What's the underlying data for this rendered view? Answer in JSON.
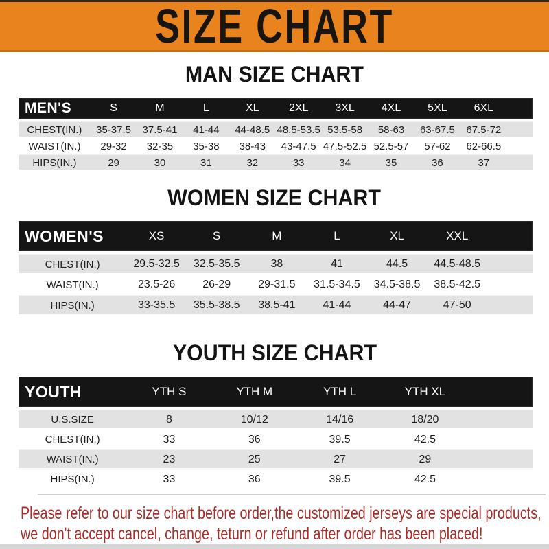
{
  "banner": {
    "title": "SIZE CHART",
    "bg_color": "#E8831D",
    "text_color": "#181410"
  },
  "sections": [
    {
      "id": "men",
      "heading": "MAN SIZE CHART",
      "table": {
        "header_label": "MEN'S",
        "columns": [
          "S",
          "M",
          "L",
          "XL",
          "2XL",
          "3XL",
          "4XL",
          "5XL",
          "6XL"
        ],
        "rows": [
          {
            "label": "CHEST(IN.)",
            "values": [
              "35-37.5",
              "37.5-41",
              "41-44",
              "44-48.5",
              "48.5-53.5",
              "53.5-58",
              "58-63",
              "63-67.5",
              "67.5-72"
            ]
          },
          {
            "label": "WAIST(IN.)",
            "values": [
              "29-32",
              "32-35",
              "35-38",
              "38-43",
              "43-47.5",
              "47.5-52.5",
              "52.5-57",
              "57-62",
              "62-66.5"
            ]
          },
          {
            "label": "HIPS(IN.)",
            "values": [
              "29",
              "30",
              "31",
              "32",
              "33",
              "34",
              "35",
              "36",
              "37"
            ]
          }
        ]
      }
    },
    {
      "id": "women",
      "heading": "WOMEN SIZE CHART",
      "table": {
        "header_label": "WOMEN'S",
        "columns": [
          "XS",
          "S",
          "M",
          "L",
          "XL",
          "XXL"
        ],
        "rows": [
          {
            "label": "CHEST(IN.)",
            "values": [
              "29.5-32.5",
              "32.5-35.5",
              "38",
              "41",
              "44.5",
              "44.5-48.5"
            ]
          },
          {
            "label": "WAIST(IN.)",
            "values": [
              "23.5-26",
              "26-29",
              "29-31.5",
              "31.5-34.5",
              "34.5-38.5",
              "38.5-42.5"
            ]
          },
          {
            "label": "HIPS(IN.)",
            "values": [
              "33-35.5",
              "35.5-38.5",
              "38.5-41",
              "41-44",
              "44-47",
              "47-50"
            ]
          }
        ]
      }
    },
    {
      "id": "youth",
      "heading": "YOUTH SIZE CHART",
      "table": {
        "header_label": "YOUTH",
        "columns": [
          "YTH S",
          "YTH M",
          "YTH L",
          "YTH XL"
        ],
        "rows": [
          {
            "label": "U.S.SIZE",
            "values": [
              "8",
              "10/12",
              "14/16",
              "18/20"
            ]
          },
          {
            "label": "CHEST(IN.)",
            "values": [
              "33",
              "36",
              "39.5",
              "42.5"
            ]
          },
          {
            "label": "WAIST(IN.)",
            "values": [
              "23",
              "25",
              "27",
              "29"
            ]
          },
          {
            "label": "HIPS(IN.)",
            "values": [
              "33",
              "36",
              "39.5",
              "42.5"
            ]
          }
        ]
      }
    }
  ],
  "footer": {
    "lines": [
      "Please refer to our size chart before order,the customized jerseys are special products,",
      "we don't accept cancel, change, teturn or refund after order has been placed!"
    ],
    "text_color": "#A8302C"
  },
  "colors": {
    "accent_orange": "#E8831D",
    "bar_black": "#151515",
    "row_gray": "#E2E2E2",
    "footer_red": "#A8302C"
  }
}
